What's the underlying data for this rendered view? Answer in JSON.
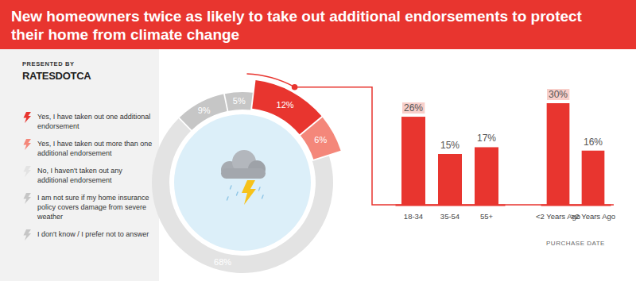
{
  "header": {
    "title": "New homeowners twice as likely to take out additional endorsements to protect their home from climate change",
    "presented_by": "PRESENTED BY",
    "brand": "RATESDOTCA"
  },
  "chart_data": [
    {
      "type": "pie",
      "categories": [
        "Yes, I have taken out one additional endorsement",
        "Yes, I have taken out more than one additional endorsement",
        "No, I haven't taken out any additional endorsement",
        "I am not sure if my home insurance policy covers damage from severe weather",
        "I don't know / I prefer not to answer"
      ],
      "values": [
        12,
        6,
        68,
        9,
        5
      ],
      "value_labels": [
        "12%",
        "6%",
        "68%",
        "9%",
        "5%"
      ],
      "colors": [
        "#e8352f",
        "#f4877a",
        "#e3e3e3",
        "#c6c6c6",
        "#c6c6c6"
      ],
      "data_labels": true,
      "legend": "left"
    },
    {
      "type": "bar",
      "categories": [
        "18-34",
        "35-54",
        "55+"
      ],
      "values": [
        26,
        15,
        17
      ],
      "value_labels": [
        "26%",
        "15%",
        "17%"
      ],
      "color": "#e8352f",
      "data_labels": true,
      "tick_labels": "x"
    },
    {
      "type": "bar",
      "x_label": "PURCHASE DATE",
      "categories": [
        "<2 Years Ago",
        ">2 Years Ago"
      ],
      "values": [
        30,
        16
      ],
      "value_labels": [
        "30%",
        "16%"
      ],
      "color": "#e8352f",
      "data_labels": true,
      "tick_labels": "x"
    }
  ]
}
